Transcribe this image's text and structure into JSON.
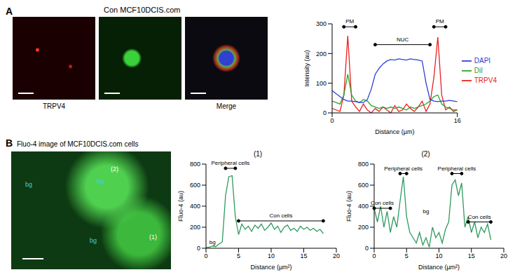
{
  "chart_data": [
    {
      "type": "line",
      "x_label": "Distance (µm)",
      "y_label": "Intensity (au)",
      "xlim": [
        0,
        16
      ],
      "xticks": [
        0,
        16
      ],
      "ylim": [
        0,
        300
      ],
      "yticks": [
        0,
        100,
        200,
        300
      ],
      "legend": "right",
      "x": [
        0,
        0.5,
        1,
        1.5,
        2,
        2.5,
        3,
        3.5,
        4,
        4.5,
        5,
        5.5,
        6,
        6.5,
        7,
        7.5,
        8,
        8.5,
        9,
        9.5,
        10,
        10.5,
        11,
        11.5,
        12,
        12.5,
        13,
        13.5,
        14,
        14.5,
        15,
        15.5,
        16
      ],
      "series": [
        {
          "name": "TRPV4",
          "color": "#e8201f",
          "values": [
            15,
            10,
            5,
            60,
            260,
            40,
            20,
            5,
            30,
            10,
            0,
            15,
            5,
            20,
            10,
            0,
            25,
            5,
            10,
            30,
            15,
            5,
            20,
            40,
            5,
            30,
            120,
            255,
            60,
            10,
            20,
            5,
            10
          ]
        },
        {
          "name": "DiI",
          "color": "#2ca02c",
          "values": [
            40,
            35,
            30,
            60,
            130,
            60,
            40,
            35,
            45,
            40,
            25,
            20,
            15,
            20,
            15,
            20,
            15,
            20,
            15,
            10,
            20,
            15,
            20,
            25,
            30,
            40,
            55,
            60,
            30,
            20,
            15,
            10,
            10
          ]
        },
        {
          "name": "DAPI",
          "color": "#2b3fd6",
          "values": [
            75,
            65,
            55,
            45,
            40,
            40,
            38,
            35,
            35,
            45,
            80,
            130,
            150,
            165,
            175,
            180,
            178,
            182,
            180,
            178,
            182,
            180,
            178,
            175,
            100,
            45,
            40,
            38,
            40,
            40,
            42,
            40,
            38
          ]
        }
      ],
      "annotations": [
        {
          "text": "PM",
          "x": [
            1.5,
            3
          ],
          "y": 290
        },
        {
          "text": "NUC",
          "x": [
            5.5,
            12.5
          ],
          "y": 230
        },
        {
          "text": "PM",
          "x": [
            13,
            14.5
          ],
          "y": 290
        }
      ]
    },
    {
      "type": "line",
      "title": "(1)",
      "x_label": "Distance (µm²)",
      "y_label": "Fluo-4 (au)",
      "xlim": [
        0,
        20
      ],
      "xticks": [
        0,
        5,
        10,
        15,
        20
      ],
      "ylim": [
        0,
        800
      ],
      "yticks": [
        0,
        200,
        400,
        600,
        800
      ],
      "color": "#2e9a5e",
      "x": [
        0,
        0.5,
        1,
        1.5,
        2,
        2.5,
        3,
        3.5,
        4,
        4.5,
        5,
        5.5,
        6,
        6.5,
        7,
        7.5,
        8,
        8.5,
        9,
        9.5,
        10,
        10.5,
        11,
        11.5,
        12,
        12.5,
        13,
        13.5,
        14,
        14.5,
        15,
        15.5,
        16,
        16.5,
        17,
        17.5,
        18
      ],
      "values": [
        5,
        10,
        20,
        15,
        40,
        60,
        500,
        680,
        690,
        300,
        130,
        230,
        180,
        210,
        160,
        220,
        190,
        230,
        170,
        200,
        240,
        180,
        210,
        150,
        200,
        220,
        170,
        190,
        160,
        210,
        180,
        200,
        170,
        190,
        160,
        180,
        140
      ],
      "annotations": [
        {
          "text": "Peripheral cells",
          "x": [
            3,
            4.5
          ],
          "y": 760
        },
        {
          "text": "Con cells",
          "x": [
            5,
            18
          ],
          "y": 260
        },
        {
          "text": "bg",
          "x": 1,
          "y": 60
        }
      ]
    },
    {
      "type": "line",
      "title": "(2)",
      "x_label": "Distance (µm²)",
      "y_label": "Fluo-4 (au)",
      "xlim": [
        0,
        20
      ],
      "xticks": [
        0,
        5,
        10,
        15,
        20
      ],
      "ylim": [
        0,
        800
      ],
      "yticks": [
        0,
        200,
        400,
        600,
        800
      ],
      "color": "#2e9a5e",
      "x": [
        0,
        0.5,
        1,
        1.5,
        2,
        2.5,
        3,
        3.5,
        4,
        4.5,
        5,
        5.5,
        6,
        6.5,
        7,
        7.5,
        8,
        8.5,
        9,
        9.5,
        10,
        10.5,
        11,
        11.5,
        12,
        12.5,
        13,
        13.5,
        14,
        14.5,
        15,
        15.5,
        16,
        16.5,
        17,
        17.5,
        18
      ],
      "values": [
        380,
        250,
        400,
        200,
        350,
        150,
        300,
        200,
        450,
        680,
        300,
        150,
        100,
        50,
        150,
        30,
        100,
        10,
        200,
        100,
        150,
        50,
        180,
        250,
        600,
        650,
        500,
        620,
        200,
        300,
        150,
        250,
        100,
        200,
        150,
        230,
        80
      ],
      "annotations": [
        {
          "text": "Con cells",
          "x": [
            0,
            2.5
          ],
          "y": 380
        },
        {
          "text": "Peripheral cells",
          "x": [
            4,
            5
          ],
          "y": 710
        },
        {
          "text": "bg",
          "x": 8,
          "y": 350
        },
        {
          "text": "Peripheral cells",
          "x": [
            12,
            13.5
          ],
          "y": 710
        },
        {
          "text": "Con cells",
          "x": [
            14.5,
            18
          ],
          "y": 250
        }
      ]
    }
  ],
  "panels": [
    {
      "label": "A",
      "title": "Con MCF10DCIS.com",
      "image_captions": [
        "TRPV4",
        "Merge"
      ]
    },
    {
      "label": "B",
      "title": "Fluo-4 image of MCF10DCIS.com cells",
      "image_labels": [
        "bg",
        "bg",
        "bg",
        "(2)",
        "(1)"
      ]
    }
  ]
}
